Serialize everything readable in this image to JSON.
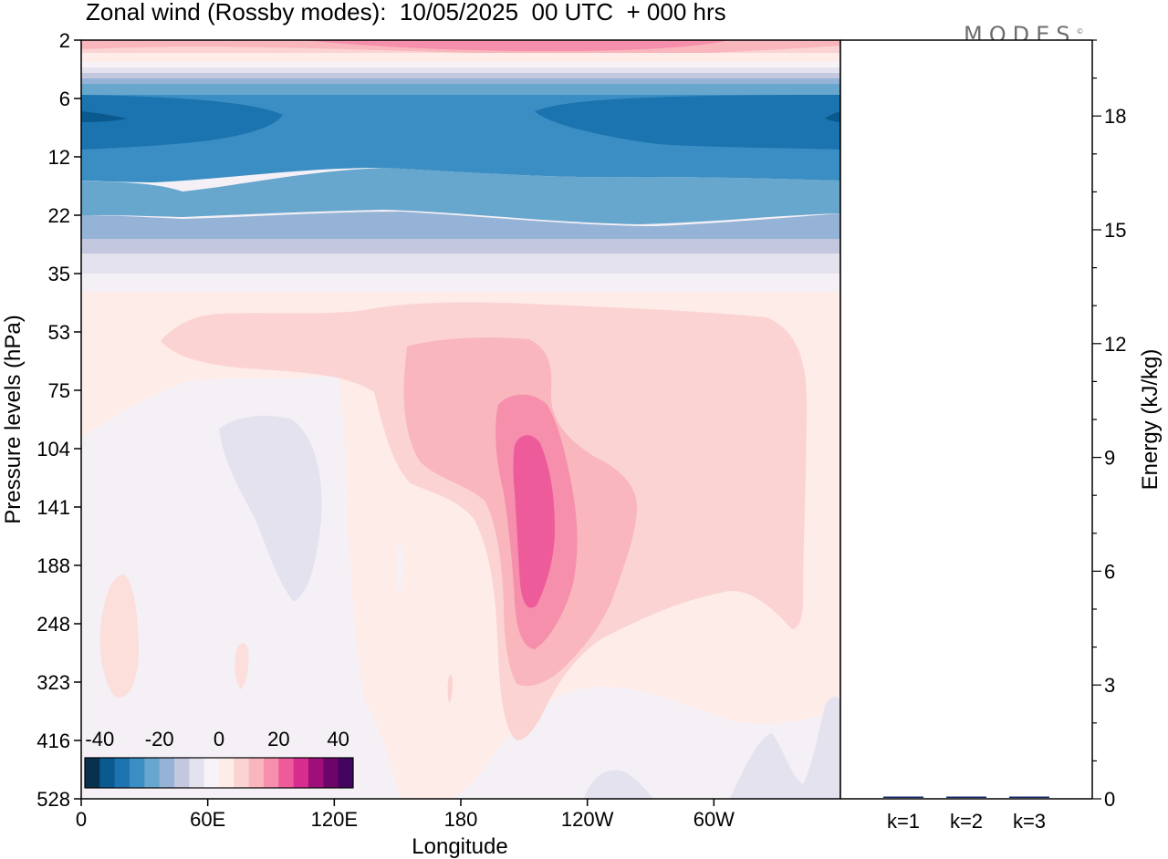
{
  "title": "Zonal wind (Rossby modes):  10/05/2025  00 UTC  + 000 hrs",
  "brand": "MODES",
  "brand_mark": "©",
  "chart_data": [
    {
      "type": "heatmap",
      "title": "Zonal wind (Rossby modes):  10/05/2025  00 UTC  + 000 hrs",
      "xlabel": "Longitude",
      "ylabel": "Pressure levels (hPa)",
      "x_ticks": [
        "0",
        "60E",
        "120E",
        "180",
        "120W",
        "60W"
      ],
      "x_tick_degrees": [
        0,
        60,
        120,
        180,
        240,
        300
      ],
      "x_range_degrees": [
        0,
        360
      ],
      "y_ticks": [
        "2",
        "6",
        "12",
        "22",
        "35",
        "53",
        "75",
        "104",
        "141",
        "188",
        "248",
        "323",
        "416",
        "528"
      ],
      "y_scale": "model levels (top 2 hPa, bottom 528 hPa)",
      "colorbar": {
        "tick_labels": [
          "-40",
          "-20",
          "0",
          "20",
          "40"
        ],
        "range": [
          -45,
          45
        ],
        "step": 5,
        "colors": [
          "#08304f",
          "#0a5a8f",
          "#1b74b0",
          "#3a8ec3",
          "#67a6cd",
          "#95b3d6",
          "#c3c8df",
          "#e4e2ee",
          "#f8f3f7",
          "#feece9",
          "#fbd3d3",
          "#f9b6bc",
          "#f58fab",
          "#ee5b9b",
          "#d62d8e",
          "#9e0f79",
          "#6d0469",
          "#43045f"
        ]
      },
      "summary": {
        "westward_jet_core_hPa": 8,
        "westward_jet_min_ms": -30,
        "eastward_max_near_200W_hPa_range": [
          100,
          250
        ],
        "eastward_max_ms": 30,
        "upper_level_maximum_hPa": 2,
        "upper_level_maximum_ms": 25
      }
    },
    {
      "type": "bar",
      "ylabel": "Energy (kJ/kg)",
      "categories": [
        "k=1",
        "k=2",
        "k=3"
      ],
      "values": [
        0.03,
        0.01,
        0.005
      ],
      "ylim": [
        0,
        20
      ],
      "y_ticks": [
        "0",
        "3",
        "6",
        "9",
        "12",
        "15",
        "18"
      ],
      "bar_color": "#1a2a6c"
    }
  ]
}
